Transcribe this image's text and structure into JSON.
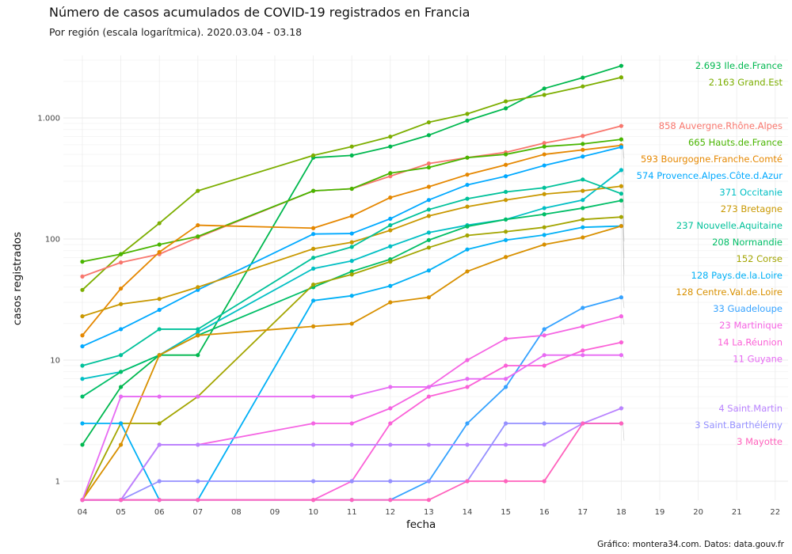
{
  "header": {
    "title": "Número de casos acumulados de COVID-19 registrados en Francia",
    "subtitle": "Por región (escala logarítmica). 2020.03.04 - 03.18"
  },
  "caption": "Gráfico: montera34.com. Datos: data.gouv.fr",
  "chart_data": {
    "type": "line",
    "title": "Número de casos acumulados de COVID-19 registrados en Francia",
    "subtitle": "Por región (escala logarítmica). 2020.03.04 - 03.18",
    "xlabel": "fecha",
    "ylabel": "casos registrados",
    "y_scale": "log",
    "ylim": [
      0.7,
      3500
    ],
    "y_ticks": [
      1,
      10,
      100,
      1000
    ],
    "y_tick_labels": [
      "1",
      "10",
      "100",
      "1.000"
    ],
    "x_ticks": [
      "04",
      "05",
      "06",
      "07",
      "08",
      "09",
      "10",
      "11",
      "12",
      "13",
      "14",
      "15",
      "16",
      "17",
      "18",
      "19",
      "20",
      "21",
      "22"
    ],
    "grid": true,
    "legend": "direct labels at line ends (right)",
    "series": [
      {
        "name": "Ile.de.France",
        "color": "#00b84f",
        "end_label": "2.693 Ile.de.France",
        "x": [
          "04",
          "05",
          "06",
          "07",
          "10",
          "11",
          "12",
          "13",
          "14",
          "15",
          "16",
          "17",
          "18"
        ],
        "values": [
          2,
          6,
          11,
          11,
          470,
          490,
          580,
          720,
          950,
          1200,
          1750,
          2150,
          2693
        ]
      },
      {
        "name": "Grand.Est",
        "color": "#7cae00",
        "end_label": "2.163 Grand.Est",
        "x": [
          "04",
          "05",
          "06",
          "07",
          "10",
          "11",
          "12",
          "13",
          "14",
          "15",
          "16",
          "17",
          "18"
        ],
        "values": [
          38,
          75,
          135,
          250,
          490,
          580,
          700,
          920,
          1080,
          1370,
          1550,
          1820,
          2163
        ]
      },
      {
        "name": "Auvergne.Rhône.Alpes",
        "color": "#f8766d",
        "end_label": "858 Auvergne.Rhône.Alpes",
        "x": [
          "04",
          "05",
          "06",
          "07",
          "10",
          "11",
          "12",
          "13",
          "14",
          "15",
          "16",
          "17",
          "18"
        ],
        "values": [
          49,
          64,
          75,
          103,
          250,
          260,
          330,
          420,
          470,
          520,
          620,
          710,
          858
        ]
      },
      {
        "name": "Hauts.de.France",
        "color": "#49b500",
        "end_label": "665 Hauts.de.France",
        "x": [
          "04",
          "05",
          "06",
          "07",
          "10",
          "11",
          "12",
          "13",
          "14",
          "15",
          "16",
          "17",
          "18"
        ],
        "values": [
          65,
          75,
          90,
          105,
          250,
          260,
          350,
          390,
          470,
          500,
          580,
          610,
          665
        ]
      },
      {
        "name": "Bourgogne.Franche.Comté",
        "color": "#e58700",
        "end_label": "593 Bourgogne.Franche.Comté",
        "x": [
          "04",
          "05",
          "06",
          "07",
          "10",
          "11",
          "12",
          "13",
          "14",
          "15",
          "16",
          "17",
          "18"
        ],
        "values": [
          16,
          39,
          78,
          130,
          123,
          155,
          220,
          270,
          340,
          410,
          500,
          545,
          593
        ]
      },
      {
        "name": "Occitanie",
        "color": "#00bfc4",
        "end_label": "371 Occitanie",
        "x": [
          "04",
          "05",
          "06",
          "07",
          "10",
          "11",
          "12",
          "13",
          "14",
          "15",
          "16",
          "17",
          "18"
        ],
        "values": [
          7,
          8,
          11,
          17,
          57,
          66,
          87,
          113,
          130,
          145,
          180,
          210,
          371
        ]
      },
      {
        "name": "Provence.Alpes.Côte.d.Azur",
        "color": "#00a9ff",
        "end_label": "574 Provence.Alpes.Côte.d.Azur",
        "x": [
          "04",
          "05",
          "06",
          "07",
          "10",
          "11",
          "12",
          "13",
          "14",
          "15",
          "16",
          "17",
          "18"
        ],
        "values": [
          13,
          18,
          26,
          38,
          110,
          111,
          147,
          210,
          280,
          330,
          405,
          480,
          574
        ]
      },
      {
        "name": "Bretagne",
        "color": "#c99800",
        "end_label": "273 Bretagne",
        "x": [
          "04",
          "05",
          "06",
          "07",
          "10",
          "11",
          "12",
          "13",
          "14",
          "15",
          "16",
          "17",
          "18"
        ],
        "values": [
          23,
          29,
          32,
          40,
          83,
          94,
          118,
          155,
          185,
          210,
          235,
          250,
          273
        ]
      },
      {
        "name": "Nouvelle.Aquitaine",
        "color": "#00c19a",
        "end_label": "237 Nouvelle.Aquitaine",
        "x": [
          "04",
          "05",
          "06",
          "07",
          "10",
          "11",
          "12",
          "13",
          "14",
          "15",
          "16",
          "17",
          "18"
        ],
        "values": [
          9,
          11,
          18,
          18,
          70,
          86,
          130,
          175,
          215,
          245,
          265,
          310,
          237
        ]
      },
      {
        "name": "Normandie",
        "color": "#00be67",
        "end_label": "208 Normandie",
        "x": [
          "04",
          "05",
          "06",
          "07",
          "10",
          "11",
          "12",
          "13",
          "14",
          "15",
          "16",
          "17",
          "18"
        ],
        "values": [
          5,
          8,
          11,
          16,
          40,
          54,
          68,
          98,
          127,
          145,
          160,
          180,
          208
        ]
      },
      {
        "name": "Corse",
        "color": "#a3a500",
        "end_label": "152 Corse",
        "x": [
          "04",
          "05",
          "06",
          "07",
          "10",
          "11",
          "12",
          "13",
          "14",
          "15",
          "16",
          "17",
          "18"
        ],
        "values": [
          0.7,
          3,
          3,
          5,
          42,
          51,
          65,
          85,
          107,
          115,
          125,
          145,
          152
        ]
      },
      {
        "name": "Pays.de.la.Loire",
        "color": "#00b0f6",
        "end_label": "128 Pays.de.la.Loire",
        "x": [
          "04",
          "05",
          "06",
          "07",
          "10",
          "11",
          "12",
          "13",
          "14",
          "15",
          "16",
          "17",
          "18"
        ],
        "values": [
          3,
          3,
          0.7,
          0.7,
          31,
          34,
          41,
          55,
          82,
          98,
          108,
          125,
          128
        ]
      },
      {
        "name": "Centre.Val.de.Loire",
        "color": "#d89000",
        "end_label": "128 Centre.Val.de.Loire",
        "x": [
          "04",
          "05",
          "06",
          "07",
          "10",
          "11",
          "12",
          "13",
          "14",
          "15",
          "16",
          "17",
          "18"
        ],
        "values": [
          0.7,
          2,
          11,
          16,
          19,
          20,
          30,
          33,
          54,
          71,
          90,
          103,
          128
        ]
      },
      {
        "name": "Guadeloupe",
        "color": "#35a2ff",
        "end_label": "33 Guadeloupe",
        "x": [
          "04",
          "05",
          "06",
          "07",
          "10",
          "11",
          "12",
          "13",
          "14",
          "15",
          "16",
          "17",
          "18"
        ],
        "values": [
          0.7,
          0.7,
          0.7,
          0.7,
          0.7,
          0.7,
          0.7,
          1,
          3,
          6,
          18,
          27,
          33
        ]
      },
      {
        "name": "Martinique",
        "color": "#f564e3",
        "end_label": "23 Martinique",
        "x": [
          "04",
          "05",
          "06",
          "07",
          "10",
          "11",
          "12",
          "13",
          "14",
          "15",
          "16",
          "17",
          "18"
        ],
        "values": [
          0.7,
          0.7,
          2,
          2,
          3,
          3,
          4,
          6,
          10,
          15,
          16,
          19,
          23
        ]
      },
      {
        "name": "La.Réunion",
        "color": "#fb61d7",
        "end_label": "14 La.Réunion",
        "x": [
          "04",
          "05",
          "06",
          "07",
          "10",
          "11",
          "12",
          "13",
          "14",
          "15",
          "16",
          "17",
          "18"
        ],
        "values": [
          0.7,
          0.7,
          0.7,
          0.7,
          0.7,
          1,
          3,
          5,
          6,
          9,
          9,
          12,
          14
        ]
      },
      {
        "name": "Guyane",
        "color": "#e76bf3",
        "end_label": "11 Guyane",
        "x": [
          "04",
          "05",
          "06",
          "07",
          "10",
          "11",
          "12",
          "13",
          "14",
          "15",
          "16",
          "17",
          "18"
        ],
        "values": [
          0.7,
          5,
          5,
          5,
          5,
          5,
          6,
          6,
          7,
          7,
          11,
          11,
          11
        ]
      },
      {
        "name": "Saint.Martin",
        "color": "#b983ff",
        "end_label": "4 Saint.Martin",
        "x": [
          "04",
          "05",
          "06",
          "07",
          "10",
          "11",
          "12",
          "13",
          "14",
          "15",
          "16",
          "17",
          "18"
        ],
        "values": [
          0.7,
          0.7,
          2,
          2,
          2,
          2,
          2,
          2,
          2,
          2,
          2,
          3,
          4
        ]
      },
      {
        "name": "Saint.Barthélémy",
        "color": "#9590ff",
        "end_label": "3 Saint.Barthélémy",
        "x": [
          "04",
          "05",
          "06",
          "07",
          "10",
          "11",
          "12",
          "13",
          "14",
          "15",
          "16",
          "17",
          "18"
        ],
        "values": [
          0.7,
          0.7,
          1,
          1,
          1,
          1,
          1,
          1,
          1,
          3,
          3,
          3,
          3
        ]
      },
      {
        "name": "Mayotte",
        "color": "#ff62bc",
        "end_label": "3 Mayotte",
        "x": [
          "04",
          "05",
          "06",
          "07",
          "10",
          "11",
          "12",
          "13",
          "14",
          "15",
          "16",
          "17",
          "18"
        ],
        "values": [
          0.7,
          0.7,
          0.7,
          0.7,
          0.7,
          0.7,
          0.7,
          0.7,
          1,
          1,
          1,
          3,
          3
        ]
      }
    ]
  }
}
